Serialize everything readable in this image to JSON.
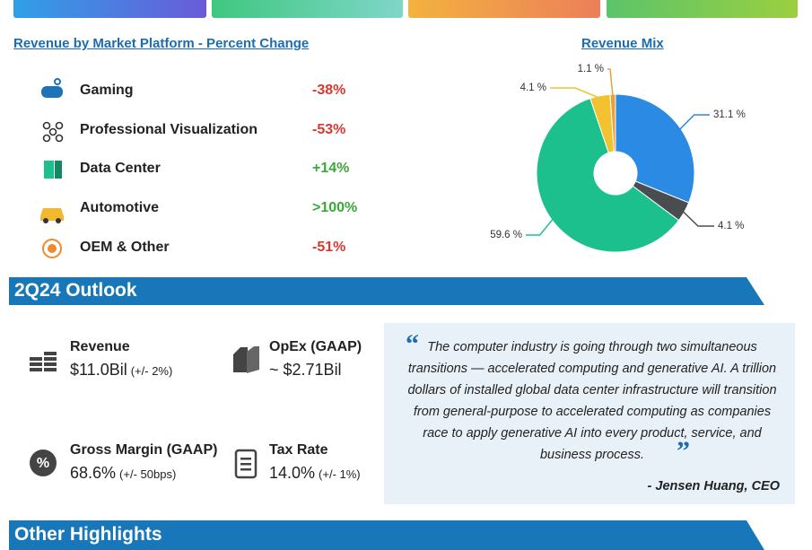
{
  "platforms": {
    "title": "Revenue by Market Platform - Percent Change",
    "rows": [
      {
        "name": "Gaming",
        "change": "-38%",
        "color": "#d63a2f"
      },
      {
        "name": "Professional Visualization",
        "change": "-53%",
        "color": "#d63a2f"
      },
      {
        "name": "Data Center",
        "change": "+14%",
        "color": "#3aa83a"
      },
      {
        "name": "Automotive",
        "change": ">100%",
        "color": "#3aa83a"
      },
      {
        "name": "OEM & Other",
        "change": "-51%",
        "color": "#d63a2f"
      }
    ]
  },
  "chart_data": {
    "type": "pie",
    "title": "Revenue Mix",
    "values": [
      31.1,
      4.1,
      59.6,
      4.1,
      1.1
    ],
    "value_labels": [
      "31.1 %",
      "4.1 %",
      "59.6 %",
      "4.1 %",
      "1.1 %"
    ],
    "colors": [
      "#2a8ae4",
      "#4a4d50",
      "#1cc08c",
      "#f2c230",
      "#e9a23b"
    ]
  },
  "outlook": {
    "title": "2Q24 Outlook",
    "items": [
      {
        "label": "Revenue",
        "value": "$11.0Bil",
        "range": "(+/- 2%)"
      },
      {
        "label": "OpEx (GAAP)",
        "value": "~ $2.71Bil"
      },
      {
        "label": "Gross Margin (GAAP)",
        "value": "68.6%",
        "range": "(+/- 50bps)"
      },
      {
        "label": "Tax Rate",
        "value": "14.0%",
        "range": "(+/- 1%)"
      }
    ],
    "quote": "The computer industry is going through two simultaneous transitions — accelerated computing and generative AI. A trillion dollars of installed global data center infrastructure will transition from general-purpose to accelerated computing as companies race to apply generative AI into every product, service, and business process.",
    "author": "- Jensen Huang, CEO"
  },
  "highlights": {
    "title": "Other Highlights"
  }
}
